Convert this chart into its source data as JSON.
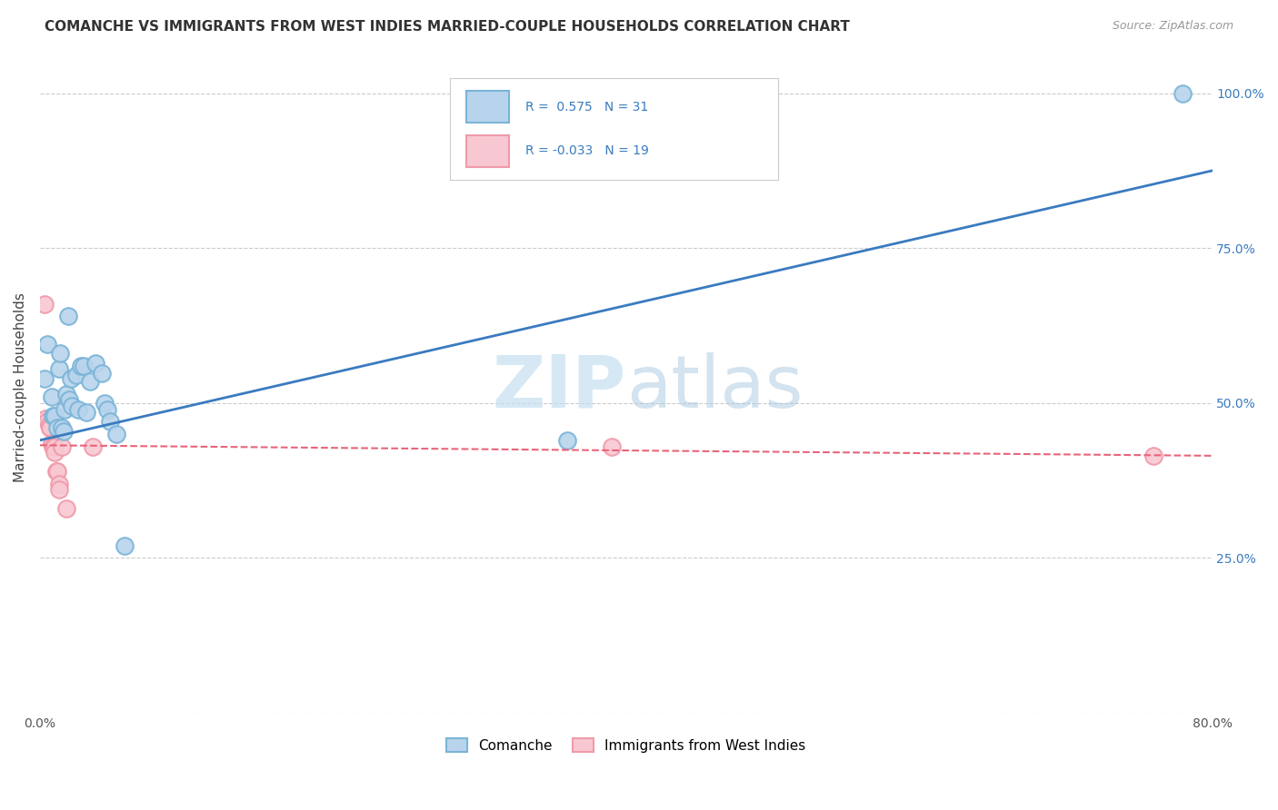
{
  "title": "COMANCHE VS IMMIGRANTS FROM WEST INDIES MARRIED-COUPLE HOUSEHOLDS CORRELATION CHART",
  "source": "Source: ZipAtlas.com",
  "ylabel": "Married-couple Households",
  "xlim": [
    0,
    0.8
  ],
  "ylim": [
    0,
    1.05
  ],
  "x_ticks": [
    0.0,
    0.1,
    0.2,
    0.3,
    0.4,
    0.5,
    0.6,
    0.7,
    0.8
  ],
  "y_ticks": [
    0.0,
    0.25,
    0.5,
    0.75,
    1.0
  ],
  "r_comanche": 0.575,
  "n_comanche": 31,
  "r_west_indies": -0.033,
  "n_west_indies": 19,
  "comanche_color": "#7ab4d8",
  "comanche_fill": "#b8d4ec",
  "west_indies_color": "#f09aaa",
  "west_indies_fill": "#f8c8d2",
  "trend_comanche_color": "#3a7bbf",
  "trend_west_indies_color": "#e8647a",
  "watermark": "ZIPatlas",
  "comanche_x": [
    0.003,
    0.005,
    0.008,
    0.009,
    0.01,
    0.012,
    0.013,
    0.014,
    0.015,
    0.016,
    0.017,
    0.018,
    0.019,
    0.02,
    0.021,
    0.022,
    0.025,
    0.026,
    0.028,
    0.03,
    0.032,
    0.034,
    0.038,
    0.042,
    0.044,
    0.046,
    0.048,
    0.052,
    0.058,
    0.36,
    0.78
  ],
  "comanche_y": [
    0.54,
    0.595,
    0.51,
    0.48,
    0.48,
    0.46,
    0.555,
    0.58,
    0.46,
    0.455,
    0.49,
    0.515,
    0.64,
    0.505,
    0.54,
    0.495,
    0.545,
    0.49,
    0.56,
    0.56,
    0.485,
    0.535,
    0.565,
    0.548,
    0.5,
    0.49,
    0.47,
    0.45,
    0.27,
    0.44,
    1.0
  ],
  "west_indies_x": [
    0.003,
    0.004,
    0.005,
    0.006,
    0.007,
    0.007,
    0.008,
    0.009,
    0.01,
    0.01,
    0.011,
    0.012,
    0.013,
    0.013,
    0.015,
    0.018,
    0.036,
    0.39,
    0.76
  ],
  "west_indies_y": [
    0.66,
    0.475,
    0.47,
    0.465,
    0.46,
    0.46,
    0.435,
    0.43,
    0.43,
    0.42,
    0.39,
    0.39,
    0.37,
    0.36,
    0.43,
    0.33,
    0.43,
    0.43,
    0.415
  ],
  "trend_comanche_x0": 0.0,
  "trend_comanche_y0": 0.44,
  "trend_comanche_x1": 0.8,
  "trend_comanche_y1": 0.875,
  "trend_wi_x0": 0.0,
  "trend_wi_y0": 0.432,
  "trend_wi_x1": 0.8,
  "trend_wi_y1": 0.415
}
